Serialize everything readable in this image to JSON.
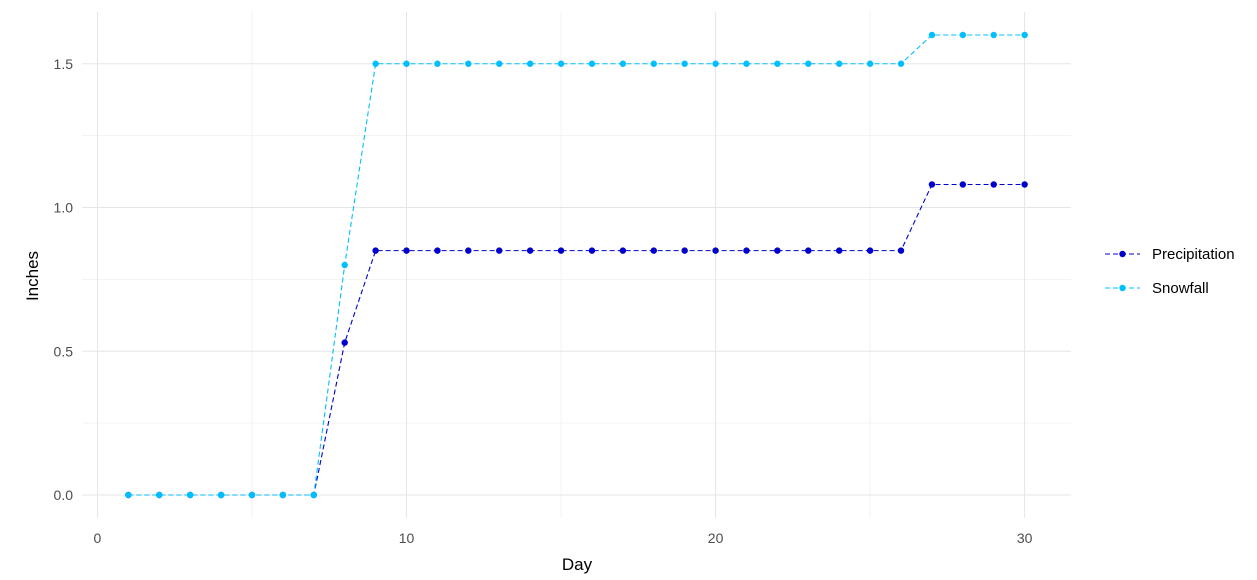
{
  "chart_data": {
    "type": "line",
    "title": "",
    "xlabel": "Day",
    "ylabel": "Inches",
    "xlim": [
      -0.5,
      31.5
    ],
    "ylim": [
      -0.08,
      1.68
    ],
    "x_ticks": [
      0,
      10,
      20,
      30
    ],
    "x_tick_labels": [
      "0",
      "10",
      "20",
      "30"
    ],
    "y_ticks": [
      0,
      0.5,
      1,
      1.5
    ],
    "y_tick_labels": [
      "0.0",
      "0.5",
      "1.0",
      "1.5"
    ],
    "grid": true,
    "legend_position": "right",
    "x": [
      1,
      2,
      3,
      4,
      5,
      6,
      7,
      8,
      9,
      10,
      11,
      12,
      13,
      14,
      15,
      16,
      17,
      18,
      19,
      20,
      21,
      22,
      23,
      24,
      25,
      26,
      27,
      28,
      29,
      30
    ],
    "series": [
      {
        "name": "Precipitation",
        "color": "#0000cd",
        "values": [
          0,
          0,
          0,
          0,
          0,
          0,
          0,
          0.53,
          0.85,
          0.85,
          0.85,
          0.85,
          0.85,
          0.85,
          0.85,
          0.85,
          0.85,
          0.85,
          0.85,
          0.85,
          0.85,
          0.85,
          0.85,
          0.85,
          0.85,
          0.85,
          1.08,
          1.08,
          1.08,
          1.08
        ]
      },
      {
        "name": "Snowfall",
        "color": "#00bfff",
        "values": [
          0,
          0,
          0,
          0,
          0,
          0,
          0,
          0.8,
          1.5,
          1.5,
          1.5,
          1.5,
          1.5,
          1.5,
          1.5,
          1.5,
          1.5,
          1.5,
          1.5,
          1.5,
          1.5,
          1.5,
          1.5,
          1.5,
          1.5,
          1.5,
          1.6,
          1.6,
          1.6,
          1.6
        ]
      }
    ]
  }
}
